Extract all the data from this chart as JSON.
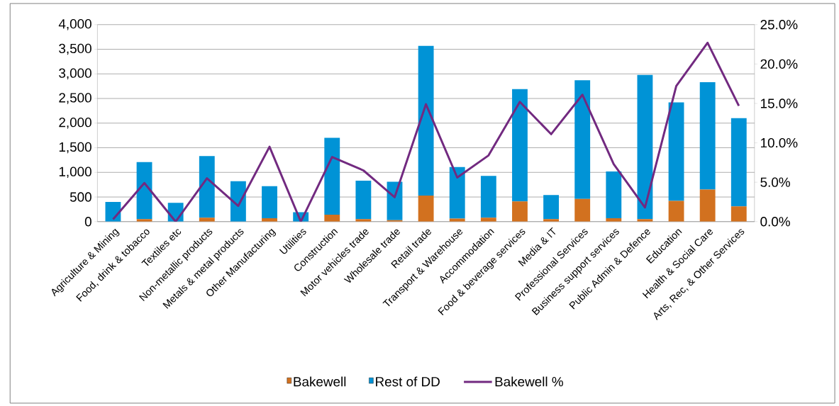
{
  "chart_data": {
    "type": "bar",
    "stacked": true,
    "categories": [
      "Agriculture & Mining",
      "Food, drink & tobacco",
      "Textiles etc",
      "Non-metallic products",
      "Metals & metal products",
      "Other Manufacturing",
      "Utilities",
      "Construction",
      "Motor vehicles trade",
      "Wholesale trade",
      "Retail trade",
      "Transport & Warehouse",
      "Accommodation",
      "Food & beverage services",
      "Media & IT",
      "Professional Services",
      "Business support services",
      "Public Admin & Defence",
      "Education",
      "Health & Social Care",
      "Arts, Rec, & Other Services"
    ],
    "series": [
      {
        "name": "Bakewell",
        "color": "#d2711f",
        "values": [
          null,
          50,
          null,
          80,
          null,
          70,
          null,
          140,
          50,
          30,
          530,
          60,
          80,
          410,
          50,
          460,
          70,
          50,
          420,
          650,
          310
        ]
      },
      {
        "name": "Rest of DD",
        "color": "#0093d6",
        "values": [
          400,
          1160,
          380,
          1250,
          820,
          650,
          190,
          1560,
          780,
          780,
          3040,
          1050,
          850,
          2280,
          490,
          2410,
          950,
          2930,
          2000,
          2180,
          1790
        ]
      },
      {
        "name": "Bakewell %",
        "type": "line",
        "axis": "y2",
        "color": "#722a80",
        "values": [
          0.3,
          4.9,
          0,
          5.5,
          2.0,
          9.5,
          0,
          8.2,
          6.5,
          3.1,
          14.9,
          5.6,
          8.4,
          15.2,
          11.1,
          16.1,
          7.3,
          1.8,
          17.2,
          22.7,
          14.7
        ]
      }
    ],
    "ylim": [
      0,
      4000
    ],
    "yticks": [
      0,
      500,
      {
        "value": 1000,
        "label": "1,000"
      },
      {
        "value": 1500,
        "label": "1,500"
      },
      {
        "value": 2000,
        "label": "2,000"
      },
      {
        "value": 2500,
        "label": "2,500"
      },
      {
        "value": 3000,
        "label": "3,000"
      },
      {
        "value": 3500,
        "label": "3,500"
      },
      {
        "value": 4000,
        "label": "4,000"
      }
    ],
    "y2lim": [
      0,
      25
    ],
    "y2ticks": [
      {
        "value": 0,
        "label": "0.0%"
      },
      {
        "value": 5,
        "label": "5.0%"
      },
      {
        "value": 10,
        "label": "10.0%"
      },
      {
        "value": 15,
        "label": "15.0%"
      },
      {
        "value": 20,
        "label": "20.0%"
      },
      {
        "value": 25,
        "label": "25.0%"
      }
    ],
    "grid": "y",
    "legend": "bottom",
    "marker": "none",
    "line_style": "solid"
  }
}
